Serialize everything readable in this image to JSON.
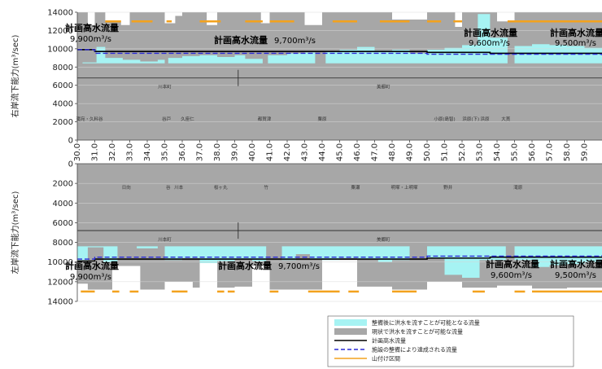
{
  "chart_data": {
    "type": "area",
    "x_ticks": [
      "30.0",
      "31.0",
      "32.0",
      "33.0",
      "34.0",
      "35.0",
      "36.0",
      "37.0",
      "38.0",
      "39.0",
      "40.0",
      "41.0",
      "42.0",
      "43.0",
      "44.0",
      "45.0",
      "46.0",
      "47.0",
      "48.0",
      "49.0",
      "50.0",
      "51.0",
      "52.0",
      "53.0",
      "54.0",
      "55.0",
      "56.0",
      "57.0",
      "58.0",
      "59.0"
    ],
    "xlim": [
      30.0,
      60.0
    ],
    "panels": [
      {
        "name": "right",
        "ylabel": "右岸流下能力(m³/sec)",
        "ylim": [
          0,
          14000
        ],
        "y_ticks": [
          "0",
          "2000",
          "4000",
          "6000",
          "8000",
          "10000",
          "12000",
          "14000"
        ],
        "series": [
          {
            "name": "整備後に洪水を流すことが可能となる流量",
            "color": "#a6f3f3",
            "values": [
              [
                30.0,
                6000
              ],
              [
                30.3,
                8500
              ],
              [
                31.1,
                10200
              ],
              [
                31.6,
                9000
              ],
              [
                32.6,
                8800
              ],
              [
                33.6,
                8600
              ],
              [
                34.6,
                8800
              ],
              [
                35.0,
                4200
              ],
              [
                35.2,
                9000
              ],
              [
                36.0,
                9200
              ],
              [
                37.0,
                9300
              ],
              [
                38.0,
                9100
              ],
              [
                39.0,
                9300
              ],
              [
                39.6,
                8900
              ],
              [
                40.6,
                4000
              ],
              [
                40.9,
                9300
              ],
              [
                42.0,
                9500
              ],
              [
                43.0,
                9600
              ],
              [
                43.6,
                6000
              ],
              [
                44.2,
                9700
              ],
              [
                45.0,
                9900
              ],
              [
                46.0,
                10200
              ],
              [
                47.0,
                9800
              ],
              [
                48.0,
                9900
              ],
              [
                49.0,
                9500
              ],
              [
                50.0,
                9900
              ],
              [
                51.0,
                10100
              ],
              [
                52.0,
                10400
              ],
              [
                52.9,
                13800
              ],
              [
                53.6,
                11200
              ],
              [
                54.6,
                8200
              ],
              [
                55.0,
                10300
              ],
              [
                56.0,
                10500
              ],
              [
                57.0,
                10400
              ],
              [
                58.0,
                10300
              ],
              [
                59.0,
                10100
              ],
              [
                60.0,
                10000
              ]
            ]
          },
          {
            "name": "現状で洪水を流すことが可能な流量",
            "color": "#a7a7a7",
            "values": [
              [
                30.0,
                14000
              ],
              [
                30.6,
                12600
              ],
              [
                31.0,
                14000
              ],
              [
                31.6,
                13000
              ],
              [
                32.5,
                12600
              ],
              [
                33.0,
                14000
              ],
              [
                35.0,
                12800
              ],
              [
                35.6,
                13600
              ],
              [
                36.0,
                14000
              ],
              [
                37.4,
                12600
              ],
              [
                38.0,
                14000
              ],
              [
                40.5,
                12800
              ],
              [
                41.0,
                14000
              ],
              [
                43.0,
                12600
              ],
              [
                44.0,
                14000
              ],
              [
                46.0,
                14000
              ],
              [
                48.0,
                13200
              ],
              [
                50.0,
                14000
              ],
              [
                51.6,
                12400
              ],
              [
                52.0,
                14000
              ],
              [
                54.0,
                13000
              ],
              [
                55.0,
                14000
              ],
              [
                60.0,
                14000
              ]
            ]
          }
        ],
        "plan_flow": {
          "name": "計画高水流量",
          "color": "#000000",
          "steps": [
            [
              30.0,
              9900
            ],
            [
              31.0,
              9700
            ],
            [
              50.0,
              9600
            ],
            [
              53.6,
              9500
            ],
            [
              60.0,
              9500
            ]
          ]
        },
        "target_flow": {
          "name": "施設の整備により達成される流量",
          "color": "#2a2ad6",
          "steps": [
            [
              30.0,
              9900
            ],
            [
              31.0,
              9500
            ],
            [
              50.0,
              9400
            ],
            [
              60.0,
              9300
            ]
          ]
        },
        "mountain_band": {
          "name": "山付け区間",
          "color": "#f3a21e",
          "segments": [
            [
              31.6,
              32.5
            ],
            [
              33.1,
              34.3
            ],
            [
              35.1,
              35.4
            ],
            [
              37.0,
              38.2
            ],
            [
              39.6,
              40.6
            ],
            [
              41.0,
              42.4
            ],
            [
              44.6,
              46.0
            ],
            [
              47.3,
              49.0
            ],
            [
              50.0,
              50.8
            ],
            [
              51.5,
              52.0
            ],
            [
              54.6,
              60.0
            ]
          ]
        },
        "annotations": [
          {
            "label": "計画高水流量",
            "value": "9,900m³/s"
          },
          {
            "label": "計画高水流量",
            "value": "9,700m³/s"
          },
          {
            "label": "計画高水流量",
            "value": "9,600m³/s"
          },
          {
            "label": "計画高水流量",
            "value": "9,500m³/s"
          }
        ],
        "towns": [
          "川本町",
          "美郷町"
        ],
        "places": [
          "滝宛・久料谷",
          "谷戸",
          "久座仁",
          "都賀津",
          "粟原",
          "小原(島智)",
          "浜原(下)",
          "浜原",
          "大貫"
        ]
      },
      {
        "name": "left",
        "ylabel": "左岸流下能力(m³/sec)",
        "ylim": [
          0,
          14000
        ],
        "y_ticks": [
          "0",
          "2000",
          "4000",
          "6000",
          "8000",
          "10000",
          "12000",
          "14000"
        ],
        "series": [
          {
            "name": "整備後に洪水を流すことが可能となる流量",
            "color": "#a6f3f3",
            "values": [
              [
                30.0,
                9800
              ],
              [
                30.6,
                8500
              ],
              [
                31.5,
                10000
              ],
              [
                32.3,
                8300
              ],
              [
                33.4,
                8600
              ],
              [
                34.6,
                3600
              ],
              [
                35.0,
                9800
              ],
              [
                36.0,
                9600
              ],
              [
                37.0,
                10100
              ],
              [
                38.0,
                9900
              ],
              [
                39.0,
                9700
              ],
              [
                40.0,
                9900
              ],
              [
                40.8,
                5000
              ],
              [
                41.7,
                9800
              ],
              [
                42.5,
                9200
              ],
              [
                43.3,
                9700
              ],
              [
                44.0,
                9800
              ],
              [
                45.0,
                9600
              ],
              [
                46.0,
                9700
              ],
              [
                47.2,
                10000
              ],
              [
                48.0,
                9800
              ],
              [
                49.0,
                7800
              ],
              [
                50.0,
                9600
              ],
              [
                51.0,
                11300
              ],
              [
                52.0,
                11600
              ],
              [
                53.0,
                9800
              ],
              [
                54.5,
                8000
              ],
              [
                55.0,
                9800
              ],
              [
                56.0,
                10500
              ],
              [
                57.0,
                10300
              ],
              [
                58.0,
                10200
              ],
              [
                59.0,
                10000
              ],
              [
                60.0,
                10100
              ]
            ]
          },
          {
            "name": "現状で洪水を流すことが可能な流量",
            "color": "#a7a7a7",
            "values": [
              [
                30.0,
                12200
              ],
              [
                30.6,
                12800
              ],
              [
                32.0,
                10400
              ],
              [
                33.6,
                12800
              ],
              [
                35.0,
                12000
              ],
              [
                36.6,
                12600
              ],
              [
                37.0,
                10100
              ],
              [
                38.0,
                12600
              ],
              [
                39.0,
                12500
              ],
              [
                40.0,
                10400
              ],
              [
                41.0,
                12800
              ],
              [
                43.0,
                12800
              ],
              [
                44.0,
                9800
              ],
              [
                46.0,
                12500
              ],
              [
                48.0,
                12800
              ],
              [
                50.0,
                12000
              ],
              [
                52.0,
                12600
              ],
              [
                54.0,
                12400
              ],
              [
                56.0,
                12700
              ],
              [
                58.0,
                12600
              ],
              [
                60.0,
                12800
              ]
            ]
          }
        ],
        "plan_flow": {
          "name": "計画高水流量",
          "color": "#000000",
          "steps": [
            [
              30.0,
              9900
            ],
            [
              31.0,
              9700
            ],
            [
              50.0,
              9600
            ],
            [
              53.6,
              9500
            ],
            [
              60.0,
              9500
            ]
          ]
        },
        "target_flow": {
          "name": "施設の整備により達成される流量",
          "color": "#2a2ad6",
          "steps": [
            [
              30.0,
              9700
            ],
            [
              31.0,
              9500
            ],
            [
              50.0,
              9400
            ],
            [
              60.0,
              9300
            ]
          ]
        },
        "mountain_band": {
          "name": "山付け区間",
          "color": "#f3a21e",
          "segments": [
            [
              30.2,
              31.0
            ],
            [
              32.0,
              32.4
            ],
            [
              33.0,
              33.5
            ],
            [
              35.4,
              36.3
            ],
            [
              38.0,
              38.4
            ],
            [
              38.6,
              39.0
            ],
            [
              41.0,
              41.5
            ],
            [
              43.2,
              45.0
            ],
            [
              45.5,
              46.1
            ],
            [
              48.0,
              49.4
            ],
            [
              52.6,
              53.3
            ],
            [
              55.0,
              55.6
            ],
            [
              56.0,
              60.0
            ]
          ]
        },
        "annotations": [
          {
            "label": "計画高水流量",
            "value": "9,900m³/s"
          },
          {
            "label": "計画高水流量",
            "value": "9,700m³/s"
          },
          {
            "label": "計画高水流量",
            "value": "9,600m³/s"
          },
          {
            "label": "計画高水流量",
            "value": "9,500m³/s"
          }
        ],
        "towns": [
          "川本町",
          "美郷町"
        ],
        "places": [
          "日向",
          "谷",
          "川本",
          "桜ヶ丸",
          "竹",
          "粟瀬",
          "明塚・上明塚",
          "野井",
          "滝原"
        ]
      }
    ],
    "legend_position": "bottom-right"
  }
}
